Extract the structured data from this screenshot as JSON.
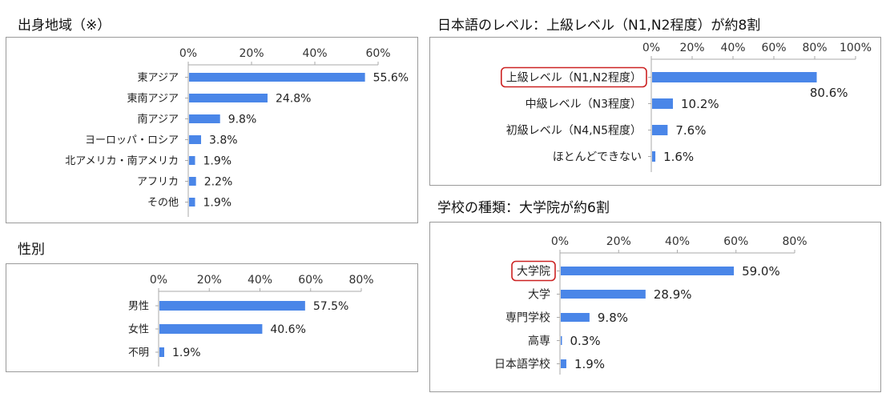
{
  "accent_color": "#4a86e8",
  "highlight_color": "#cc2222",
  "sections": {
    "origin": {
      "title": "出身地域（※）"
    },
    "gender": {
      "title": "性別"
    },
    "japanese": {
      "title": "日本語のレベル：上級レベル（N1,N2程度）が約8割"
    },
    "school": {
      "title": "学校の種類：大学院が約6割"
    }
  },
  "chart_data": [
    {
      "id": "origin",
      "type": "bar",
      "orientation": "horizontal",
      "title": "出身地域（※）",
      "categories": [
        "東アジア",
        "東南アジア",
        "南アジア",
        "ヨーロッパ・ロシア",
        "北アメリカ・南アメリカ",
        "アフリカ",
        "その他"
      ],
      "values": [
        55.6,
        24.8,
        9.8,
        3.8,
        1.9,
        2.2,
        1.9
      ],
      "value_labels": [
        "55.6%",
        "24.8%",
        "9.8%",
        "3.8%",
        "1.9%",
        "2.2%",
        "1.9%"
      ],
      "ticks": [
        "0%",
        "20%",
        "40%",
        "60%"
      ],
      "xlim": [
        0,
        60
      ],
      "grid": false,
      "highlight_index": -1
    },
    {
      "id": "gender",
      "type": "bar",
      "orientation": "horizontal",
      "title": "性別",
      "categories": [
        "男性",
        "女性",
        "不明"
      ],
      "values": [
        57.5,
        40.6,
        1.9
      ],
      "value_labels": [
        "57.5%",
        "40.6%",
        "1.9%"
      ],
      "ticks": [
        "0%",
        "20%",
        "40%",
        "60%",
        "80%"
      ],
      "xlim": [
        0,
        80
      ],
      "grid": false,
      "highlight_index": -1
    },
    {
      "id": "japanese",
      "type": "bar",
      "orientation": "horizontal",
      "title": "日本語のレベル：上級レベル（N1,N2程度）が約8割",
      "categories": [
        "上級レベル（N1,N2程度）",
        "中級レベル（N3程度）",
        "初級レベル（N4,N5程度）",
        "ほとんどできない"
      ],
      "values": [
        80.6,
        10.2,
        7.6,
        1.6
      ],
      "value_labels": [
        "80.6%",
        "10.2%",
        "7.6%",
        "1.6%"
      ],
      "ticks": [
        "0%",
        "20%",
        "40%",
        "60%",
        "80%",
        "100%"
      ],
      "xlim": [
        0,
        100
      ],
      "grid": false,
      "highlight_index": 0
    },
    {
      "id": "school",
      "type": "bar",
      "orientation": "horizontal",
      "title": "学校の種類：大学院が約6割",
      "categories": [
        "大学院",
        "大学",
        "専門学校",
        "高専",
        "日本語学校"
      ],
      "values": [
        59.0,
        28.9,
        9.8,
        0.3,
        1.9
      ],
      "value_labels": [
        "59.0%",
        "28.9%",
        "9.8%",
        "0.3%",
        "1.9%"
      ],
      "ticks": [
        "0%",
        "20%",
        "40%",
        "60%",
        "80%"
      ],
      "xlim": [
        0,
        80
      ],
      "grid": false,
      "highlight_index": 0
    }
  ]
}
